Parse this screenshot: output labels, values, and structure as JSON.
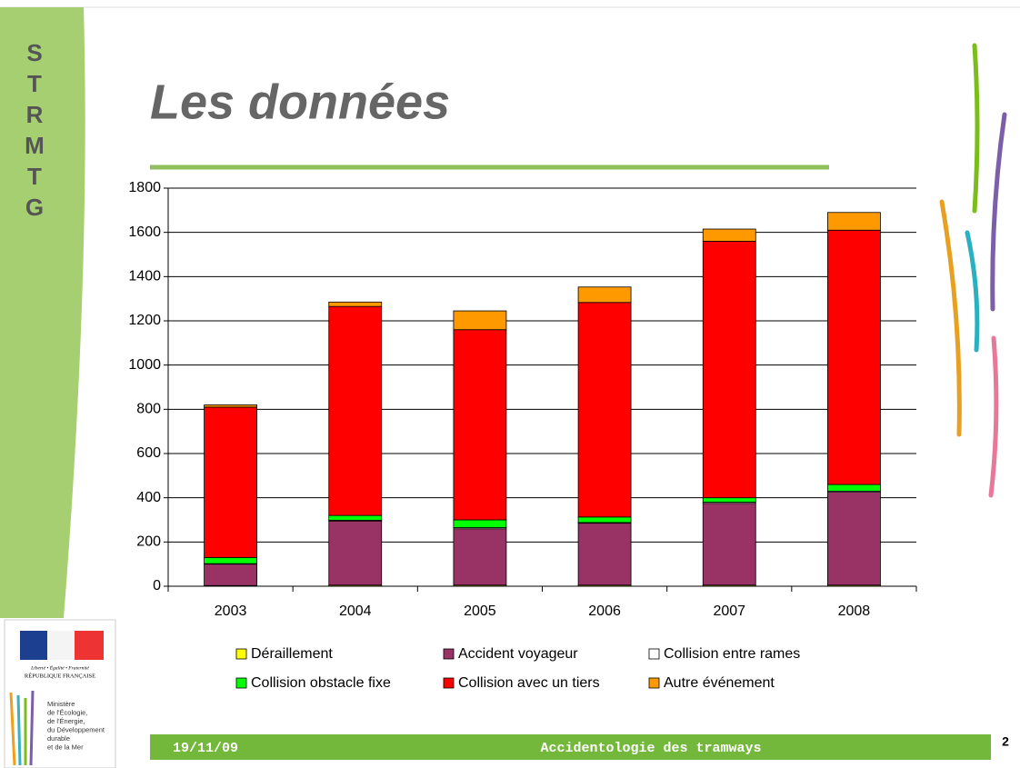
{
  "sidebar_letters": [
    "S",
    "T",
    "R",
    "M",
    "T",
    "G"
  ],
  "title": "Les données",
  "logo": {
    "motto": "Liberté • Égalité • Fraternité",
    "country": "RÉPUBLIQUE FRANÇAISE",
    "ministry": [
      "Ministère",
      "de l'Écologie,",
      "de l'Énergie,",
      "du Développement",
      "durable",
      "et de la Mer"
    ]
  },
  "footer": {
    "date": "19/11/09",
    "title": "Accidentologie des tramways",
    "page": "2"
  },
  "chart_data": {
    "type": "stacked_bar",
    "categories": [
      "2003",
      "2004",
      "2005",
      "2006",
      "2007",
      "2008"
    ],
    "series": [
      {
        "name": "Déraillement",
        "color": "#ffff00",
        "values": [
          3,
          5,
          5,
          5,
          5,
          5
        ]
      },
      {
        "name": "Accident voyageur",
        "color": "#993366",
        "values": [
          97,
          290,
          255,
          280,
          370,
          420
        ]
      },
      {
        "name": "Collision entre rames",
        "color": "#ffffff",
        "values": [
          2,
          3,
          5,
          3,
          5,
          5
        ]
      },
      {
        "name": "Collision obstacle fixe",
        "color": "#00ff00",
        "values": [
          28,
          22,
          35,
          25,
          20,
          30
        ]
      },
      {
        "name": "Collision avec un tiers",
        "color": "#ff0000",
        "values": [
          680,
          945,
          860,
          970,
          1160,
          1150
        ]
      },
      {
        "name": "Autre événement",
        "color": "#ff9900",
        "values": [
          10,
          20,
          85,
          70,
          55,
          80
        ]
      }
    ],
    "ylim": [
      0,
      1800
    ],
    "yticks": [
      0,
      200,
      400,
      600,
      800,
      1000,
      1200,
      1400,
      1600,
      1800
    ],
    "grid": true
  }
}
